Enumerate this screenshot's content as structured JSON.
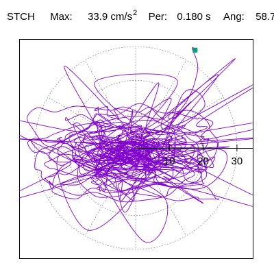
{
  "header": {
    "station": "STCH",
    "max_label": "Max:",
    "max_value": "33.9",
    "max_unit": "cm/s",
    "max_unit_exp": "2",
    "per_label": "Per:",
    "per_value": "0.180 s",
    "ang_label": "Ang:",
    "ang_value": "58.7"
  },
  "chart_data": {
    "type": "scatter",
    "plot_style": "polar particle-motion trace",
    "radial_ticks": [
      10,
      20,
      30
    ],
    "tick_labels": [
      "10",
      "20",
      "30"
    ],
    "rlim": [
      0,
      33.9
    ],
    "grid": true,
    "grid_style": "dotted circles and 30-degree radial lines",
    "trace_color": "#8000cc",
    "marker_color": "#00a07a",
    "peak_point": {
      "x": 17.4,
      "y": 29.1
    },
    "peak_angle_deg": 58.7,
    "peak_amplitude": 33.9
  }
}
